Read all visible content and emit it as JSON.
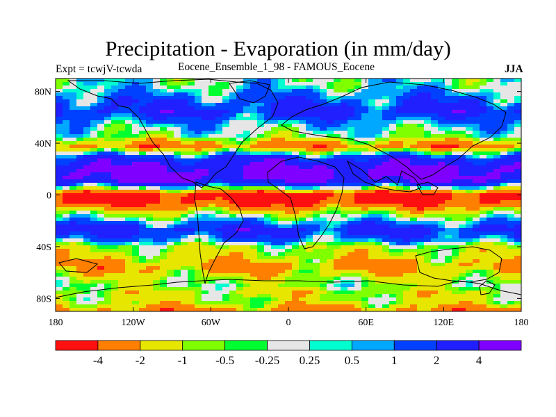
{
  "title": "Precipitation - Evaporation (in mm/day)",
  "subtitle_left": "Expt = tcwjV-tcwda",
  "subtitle_center": "Eocene_Ensemble_1_98 - FAMOUS_Eocene",
  "subtitle_right": "JJA",
  "chart_data": {
    "type": "heatmap",
    "title": "Precipitation - Evaporation (in mm/day)",
    "units": "mm/day",
    "xlim": [
      -180,
      180
    ],
    "ylim": [
      -90,
      90
    ],
    "x_ticks": [
      {
        "value": -180,
        "label": "180"
      },
      {
        "value": -120,
        "label": "120W"
      },
      {
        "value": -60,
        "label": "60W"
      },
      {
        "value": 0,
        "label": "0"
      },
      {
        "value": 60,
        "label": "60E"
      },
      {
        "value": 120,
        "label": "120E"
      },
      {
        "value": 180,
        "label": "180"
      }
    ],
    "y_ticks": [
      {
        "value": 80,
        "label": "80N"
      },
      {
        "value": 40,
        "label": "40N"
      },
      {
        "value": 0,
        "label": "0"
      },
      {
        "value": -40,
        "label": "40S"
      },
      {
        "value": -80,
        "label": "80S"
      }
    ],
    "levels": [
      -4,
      -2,
      -1,
      -0.5,
      -0.25,
      0.25,
      0.5,
      1,
      2,
      4
    ],
    "level_labels": [
      "-4",
      "-2",
      "-1",
      "-0.5",
      "-0.25",
      "0.25",
      "0.5",
      "1",
      "2",
      "4"
    ],
    "colors": [
      "#ff1010",
      "#ff7f00",
      "#e6e600",
      "#80ff00",
      "#00ff30",
      "#e6e6e6",
      "#00ffd0",
      "#00a8ff",
      "#0040ff",
      "#2020ff",
      "#8000ff"
    ],
    "zonal_profile_pattern": [
      {
        "lat": 85,
        "value": 0.1
      },
      {
        "lat": 75,
        "value": 1.2
      },
      {
        "lat": 65,
        "value": 2.5
      },
      {
        "lat": 55,
        "value": 0.6
      },
      {
        "lat": 45,
        "value": -0.3
      },
      {
        "lat": 38,
        "value": -3.0
      },
      {
        "lat": 28,
        "value": 2.5
      },
      {
        "lat": 20,
        "value": 4.5
      },
      {
        "lat": 12,
        "value": 4.5
      },
      {
        "lat": 6,
        "value": 0.4
      },
      {
        "lat": 0,
        "value": -5.0
      },
      {
        "lat": -6,
        "value": -4.5
      },
      {
        "lat": -13,
        "value": -1.2
      },
      {
        "lat": -20,
        "value": 0.6
      },
      {
        "lat": -27,
        "value": 2.5
      },
      {
        "lat": -34,
        "value": 1.2
      },
      {
        "lat": -40,
        "value": -0.8
      },
      {
        "lat": -48,
        "value": -1.3
      },
      {
        "lat": -55,
        "value": -2.5
      },
      {
        "lat": -63,
        "value": -1.2
      },
      {
        "lat": -70,
        "value": -0.5
      },
      {
        "lat": -76,
        "value": -1.2
      },
      {
        "lat": -82,
        "value": -0.8
      },
      {
        "lat": -88,
        "value": -2.5
      }
    ]
  }
}
